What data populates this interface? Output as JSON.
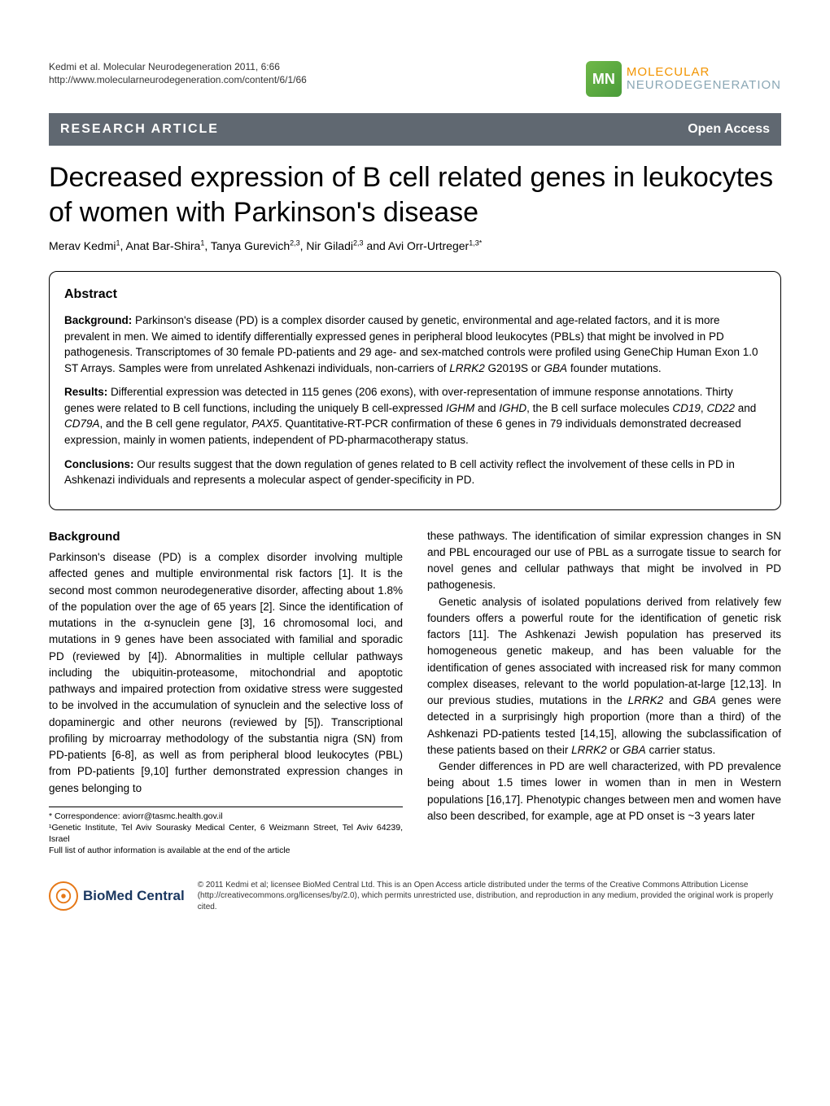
{
  "colors": {
    "banner_bg": "#606871",
    "banner_text": "#ffffff",
    "logo_orange": "#f29400",
    "logo_blue": "#8aa7b5",
    "bmc_orange": "#e67817",
    "bmc_navy": "#19365f",
    "text": "#000000",
    "background": "#ffffff"
  },
  "typography": {
    "title_fontsize": 34,
    "body_fontsize": 13.5,
    "footnote_fontsize": 10.5,
    "license_fontsize": 10
  },
  "header": {
    "citation_line1": "Kedmi et al. Molecular Neurodegeneration 2011, 6:66",
    "citation_line2": "http://www.molecularneurodegeneration.com/content/6/1/66",
    "logo_top": "MOLECULAR",
    "logo_bottom": "NEURODEGENERATION",
    "logo_initials": "MN"
  },
  "banner": {
    "left": "RESEARCH ARTICLE",
    "right": "Open Access"
  },
  "title": "Decreased expression of B cell related genes in leukocytes of women with Parkinson's disease",
  "authors_html": "Merav Kedmi<sup>1</sup>, Anat Bar-Shira<sup>1</sup>, Tanya Gurevich<sup>2,3</sup>, Nir Giladi<sup>2,3</sup> and Avi Orr-Urtreger<sup>1,3*</sup>",
  "abstract": {
    "heading": "Abstract",
    "background_label": "Background:",
    "background_text": " Parkinson's disease (PD) is a complex disorder caused by genetic, environmental and age-related factors, and it is more prevalent in men. We aimed to identify differentially expressed genes in peripheral blood leukocytes (PBLs) that might be involved in PD pathogenesis. Transcriptomes of 30 female PD-patients and 29 age- and sex-matched controls were profiled using GeneChip Human Exon 1.0 ST Arrays. Samples were from unrelated Ashkenazi individuals, non-carriers of LRRK2 G2019S or GBA founder mutations.",
    "results_label": "Results:",
    "results_text": " Differential expression was detected in 115 genes (206 exons), with over-representation of immune response annotations. Thirty genes were related to B cell functions, including the uniquely B cell-expressed IGHM and IGHD, the B cell surface molecules CD19, CD22 and CD79A, and the B cell gene regulator, PAX5. Quantitative-RT-PCR confirmation of these 6 genes in 79 individuals demonstrated decreased expression, mainly in women patients, independent of PD-pharmacotherapy status.",
    "conclusions_label": "Conclusions:",
    "conclusions_text": " Our results suggest that the down regulation of genes related to B cell activity reflect the involvement of these cells in PD in Ashkenazi individuals and represents a molecular aspect of gender-specificity in PD."
  },
  "body": {
    "background_heading": "Background",
    "left_p1": "Parkinson's disease (PD) is a complex disorder involving multiple affected genes and multiple environmental risk factors [1]. It is the second most common neurodegenerative disorder, affecting about 1.8% of the population over the age of 65 years [2]. Since the identification of mutations in the α-synuclein gene [3], 16 chromosomal loci, and mutations in 9 genes have been associated with familial and sporadic PD (reviewed by [4]). Abnormalities in multiple cellular pathways including the ubiquitin-proteasome, mitochondrial and apoptotic pathways and impaired protection from oxidative stress were suggested to be involved in the accumulation of synuclein and the selective loss of dopaminergic and other neurons (reviewed by [5]). Transcriptional profiling by microarray methodology of the substantia nigra (SN) from PD-patients [6-8], as well as from peripheral blood leukocytes (PBL) from PD-patients [9,10] further demonstrated expression changes in genes belonging to",
    "right_p1": "these pathways. The identification of similar expression changes in SN and PBL encouraged our use of PBL as a surrogate tissue to search for novel genes and cellular pathways that might be involved in PD pathogenesis.",
    "right_p2": "Genetic analysis of isolated populations derived from relatively few founders offers a powerful route for the identification of genetic risk factors [11]. The Ashkenazi Jewish population has preserved its homogeneous genetic makeup, and has been valuable for the identification of genes associated with increased risk for many common complex diseases, relevant to the world population-at-large [12,13]. In our previous studies, mutations in the LRRK2 and GBA genes were detected in a surprisingly high proportion (more than a third) of the Ashkenazi PD-patients tested [14,15], allowing the subclassification of these patients based on their LRRK2 or GBA carrier status.",
    "right_p3": "Gender differences in PD are well characterized, with PD prevalence being about 1.5 times lower in women than in men in Western populations [16,17]. Phenotypic changes between men and women have also been described, for example, age at PD onset is ~3 years later"
  },
  "footnotes": {
    "correspondence": "* Correspondence: aviorr@tasmc.health.gov.il",
    "affiliation": "¹Genetic Institute, Tel Aviv Sourasky Medical Center, 6 Weizmann Street, Tel Aviv 64239, Israel",
    "fullinfo": "Full list of author information is available at the end of the article"
  },
  "footer": {
    "bmc_bio": "BioMed",
    "bmc_central": " Central",
    "license": "© 2011 Kedmi et al; licensee BioMed Central Ltd. This is an Open Access article distributed under the terms of the Creative Commons Attribution License (http://creativecommons.org/licenses/by/2.0), which permits unrestricted use, distribution, and reproduction in any medium, provided the original work is properly cited."
  }
}
